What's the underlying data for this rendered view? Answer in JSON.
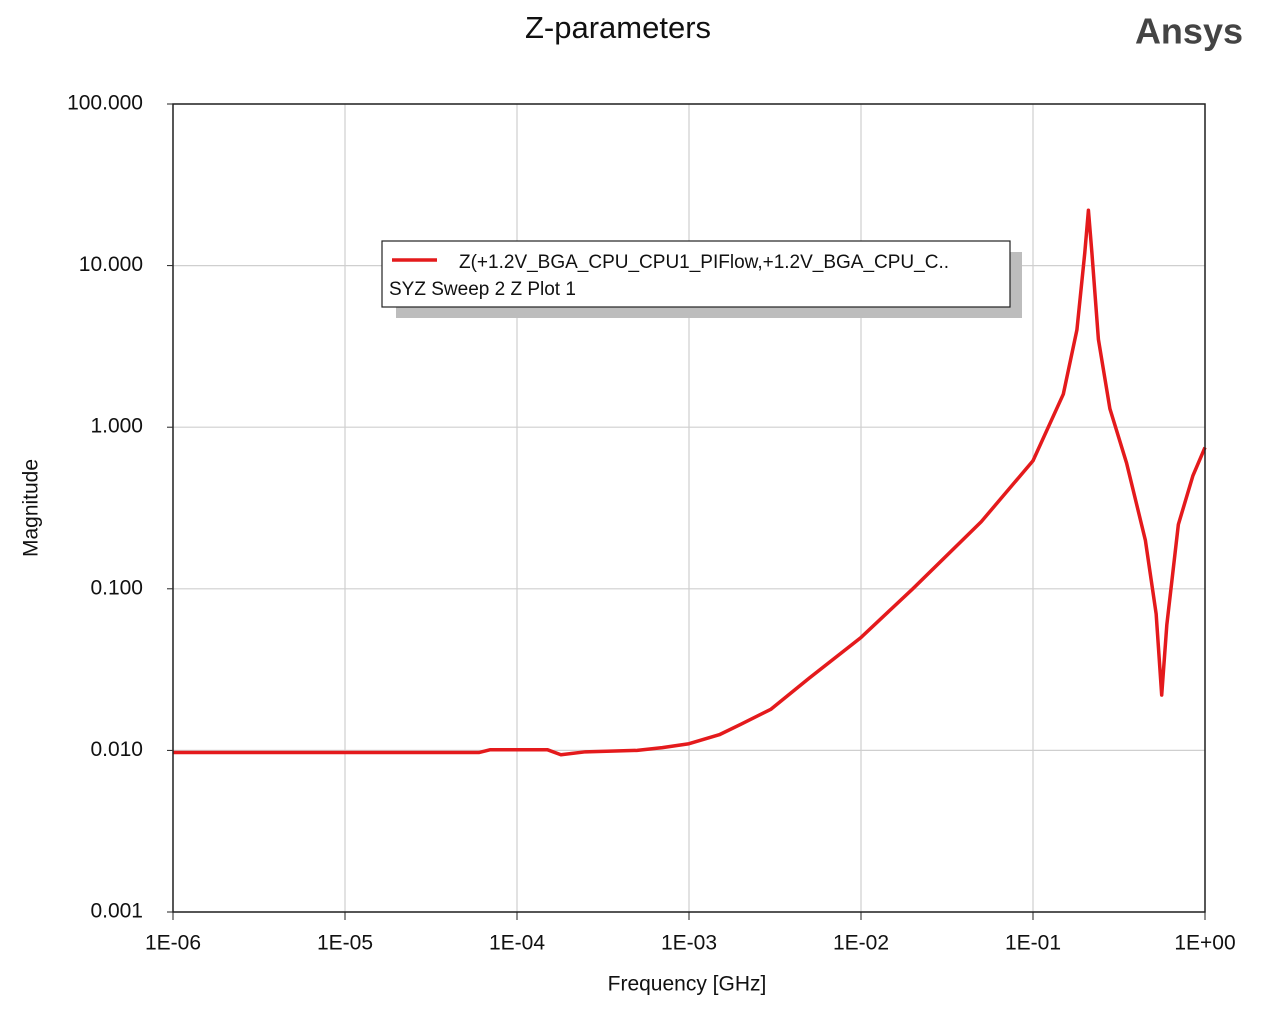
{
  "chart_data": {
    "type": "line",
    "title": "Z-parameters",
    "brand": "Ansys",
    "x_label": "Frequency [GHz]",
    "y_label": "Magnitude",
    "x_log": true,
    "y_log": true,
    "grid": true,
    "legend_subtitle": "SYZ Sweep 2 Z Plot 1",
    "x": [
      1e-06,
      6e-05,
      7e-05,
      0.00015,
      0.00018,
      0.00025,
      0.0005,
      0.0007,
      0.001,
      0.0015,
      0.002,
      0.003,
      0.005,
      0.01,
      0.02,
      0.05,
      0.1,
      0.15,
      0.18,
      0.2,
      0.21,
      0.22,
      0.24,
      0.28,
      0.35,
      0.45,
      0.52,
      0.56,
      0.6,
      0.7,
      0.85,
      1.0
    ],
    "series": [
      {
        "name": "Z(+1.2V_BGA_CPU_CPU1_PIFlow,+1.2V_BGA_CPU_C..",
        "color": "#e41a1c",
        "values": [
          0.0097,
          0.0097,
          0.0101,
          0.0101,
          0.0094,
          0.0098,
          0.01,
          0.0104,
          0.011,
          0.0125,
          0.0145,
          0.018,
          0.028,
          0.05,
          0.1,
          0.26,
          0.62,
          1.6,
          4,
          12,
          22,
          12,
          3.5,
          1.3,
          0.6,
          0.2,
          0.07,
          0.022,
          0.06,
          0.25,
          0.5,
          0.75
        ]
      }
    ],
    "xlim": [
      1e-06,
      1
    ],
    "xticks": [
      {
        "value": 1e-06,
        "label": "1E-06"
      },
      {
        "value": 1e-05,
        "label": "1E-05"
      },
      {
        "value": 0.0001,
        "label": "1E-04"
      },
      {
        "value": 0.001,
        "label": "1E-03"
      },
      {
        "value": 0.01,
        "label": "1E-02"
      },
      {
        "value": 0.1,
        "label": "1E-01"
      },
      {
        "value": 1,
        "label": "1E+00"
      }
    ],
    "ylim": [
      0.001,
      100
    ],
    "yticks": [
      {
        "value": 0.001,
        "label": "0.001"
      },
      {
        "value": 0.01,
        "label": "0.010"
      },
      {
        "value": 0.1,
        "label": "0.100"
      },
      {
        "value": 1,
        "label": "1.000"
      },
      {
        "value": 10,
        "label": "10.000"
      },
      {
        "value": 100,
        "label": "100.000"
      }
    ]
  }
}
